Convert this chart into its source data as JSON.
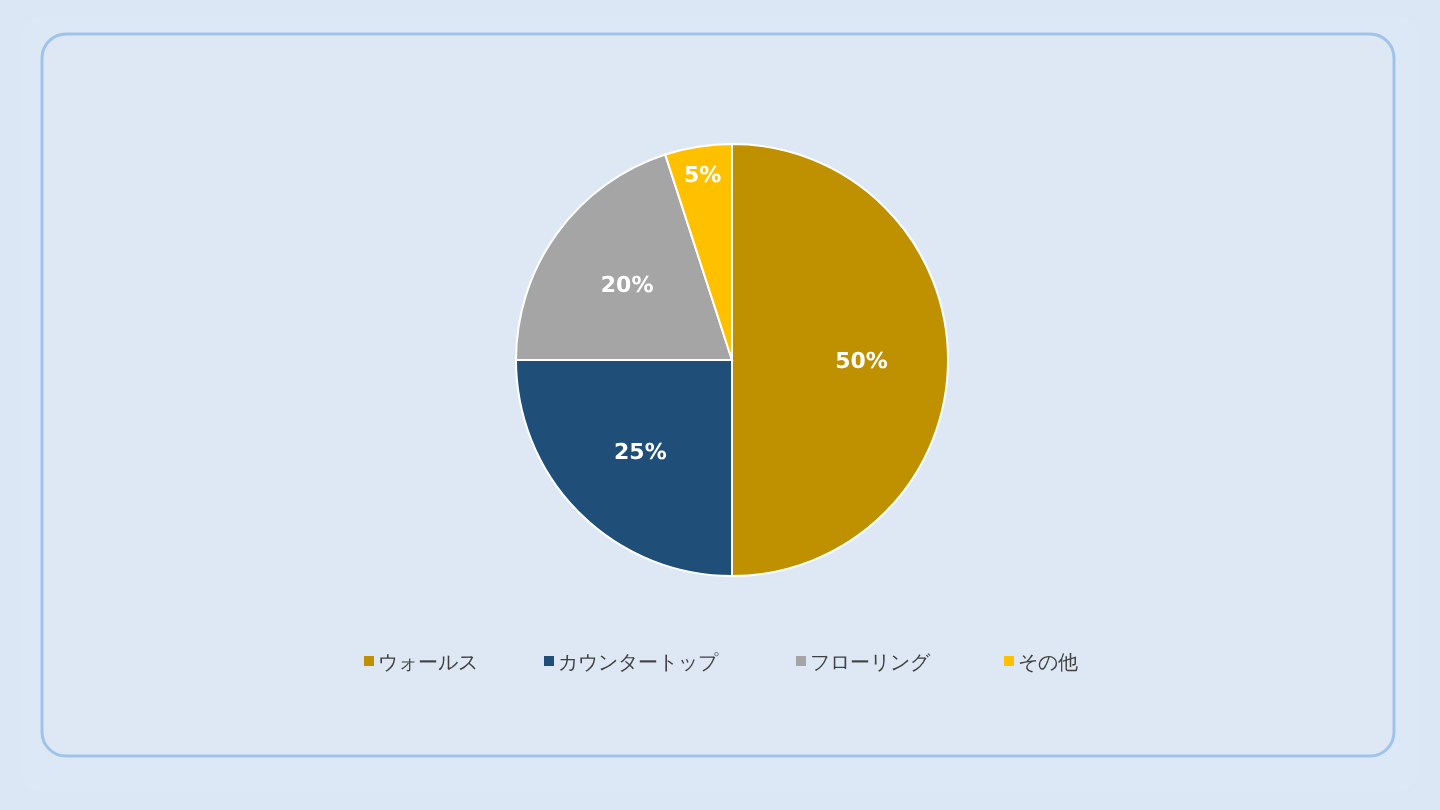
{
  "chart_data": {
    "type": "pie",
    "categories": [
      "ウォールス",
      "カウンタートップ",
      "フローリング",
      "その他"
    ],
    "values": [
      50,
      25,
      20,
      5
    ],
    "colors": [
      "#bf9000",
      "#1f4e79",
      "#a5a5a5",
      "#ffc000"
    ],
    "value_labels": [
      "50%",
      "25%",
      "20%",
      "5%"
    ],
    "legend": "bottom"
  }
}
